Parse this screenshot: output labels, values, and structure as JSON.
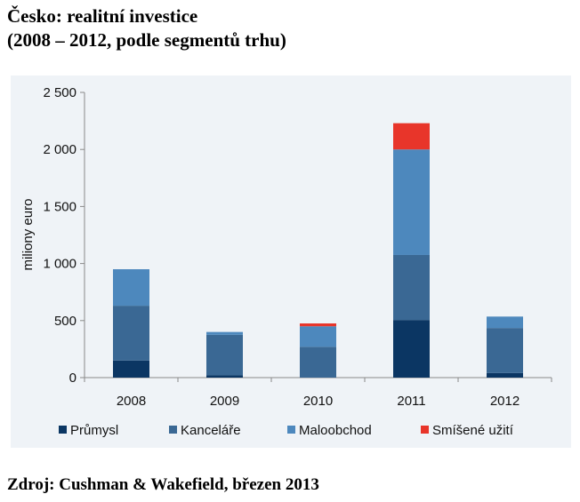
{
  "title_line1": "Česko: realitní investice",
  "title_line2": "(2008 – 2012, podle segmentů trhu)",
  "source": "Zdroj: Cushman & Wakefield, březen 2013",
  "chart_data": {
    "type": "bar",
    "stacked": true,
    "title": "Česko: realitní investice (2008 – 2012, podle segmentů trhu)",
    "xlabel": "",
    "ylabel": "miliony euro",
    "ylim": [
      0,
      2500
    ],
    "yticks": [
      0,
      500,
      1000,
      1500,
      2000,
      2500
    ],
    "ytick_labels": [
      "0",
      "500",
      "1 000",
      "1 500",
      "2 000",
      "2 500"
    ],
    "categories": [
      "2008",
      "2009",
      "2010",
      "2011",
      "2012"
    ],
    "legend_position": "bottom",
    "grid": false,
    "series": [
      {
        "name": "Průmysl",
        "color": "#0b3663",
        "values": [
          150,
          20,
          0,
          505,
          40
        ]
      },
      {
        "name": "Kanceláře",
        "color": "#3a6894",
        "values": [
          480,
          355,
          270,
          570,
          395
        ]
      },
      {
        "name": "Maloobchod",
        "color": "#4d88bd",
        "values": [
          320,
          25,
          180,
          925,
          100
        ]
      },
      {
        "name": "Smíšené užití",
        "color": "#e8352a",
        "values": [
          0,
          0,
          25,
          230,
          0
        ]
      }
    ]
  }
}
